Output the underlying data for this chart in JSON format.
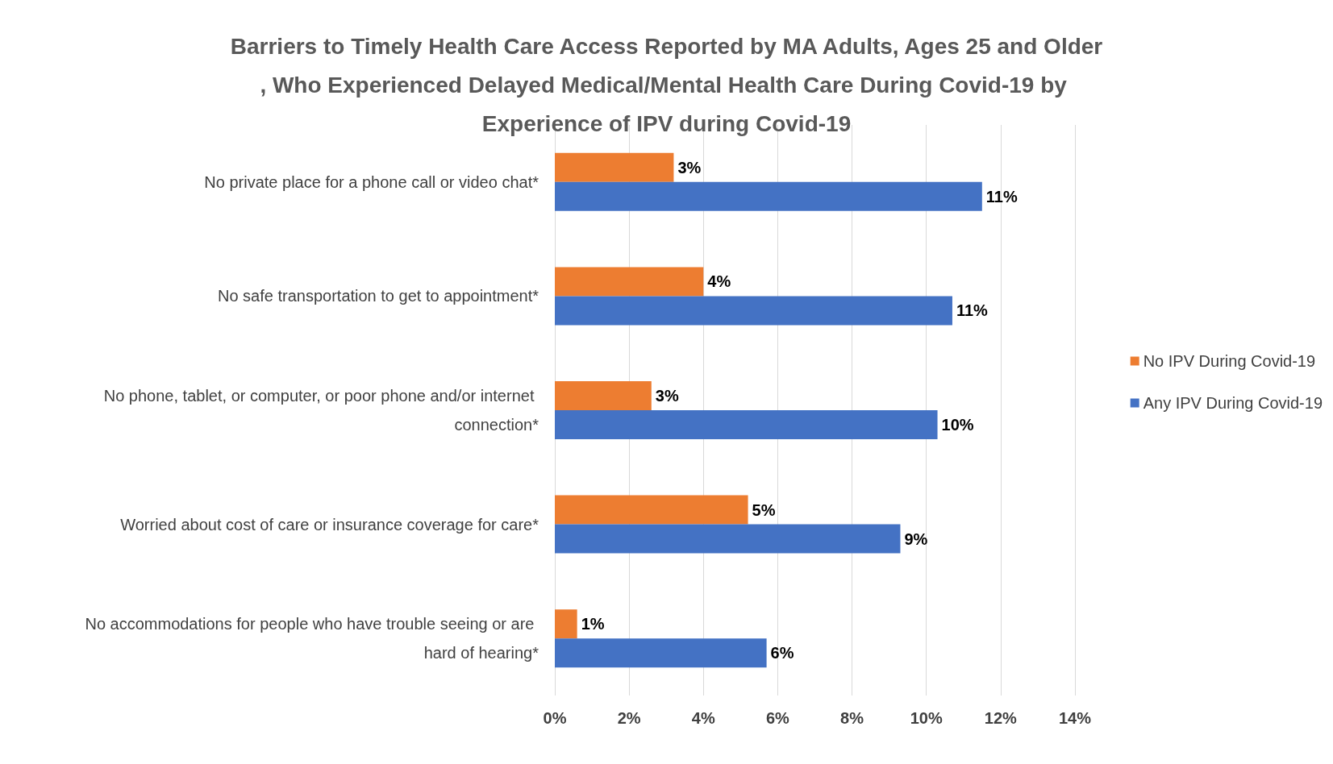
{
  "chart_data": {
    "type": "bar",
    "orientation": "horizontal",
    "title": "Barriers to Timely Health Care Access Reported by MA Adults, Ages 25 and Older, Who Experienced Delayed Medical/Mental Health Care During Covid-19 by Experience of IPV during Covid-19",
    "categories": [
      "No private place for a phone call or video chat*",
      "No safe transportation to get to appointment*",
      "No phone, tablet, or computer, or poor phone and/or internet connection*",
      "Worried about cost of care or insurance coverage for care*",
      "No accommodations for people who have trouble seeing or are hard of hearing*"
    ],
    "series": [
      {
        "name": "No IPV During Covid-19",
        "color": "#ed7d31",
        "values": [
          3.2,
          4.0,
          2.6,
          5.2,
          0.6
        ],
        "value_labels": [
          "3%",
          "4%",
          "3%",
          "5%",
          "1%"
        ]
      },
      {
        "name": "Any IPV During Covid-19",
        "color": "#4472c4",
        "values": [
          11.5,
          10.7,
          10.3,
          9.3,
          5.7
        ],
        "value_labels": [
          "11%",
          "11%",
          "10%",
          "9%",
          "6%"
        ]
      }
    ],
    "xlim": [
      0,
      14
    ],
    "xticks": [
      {
        "value": 0,
        "label": "0%"
      },
      {
        "value": 2,
        "label": "2%"
      },
      {
        "value": 4,
        "label": "4%"
      },
      {
        "value": 6,
        "label": "6%"
      },
      {
        "value": 8,
        "label": "8%"
      },
      {
        "value": 10,
        "label": "10%"
      },
      {
        "value": 12,
        "label": "12%"
      },
      {
        "value": 14,
        "label": "14%"
      }
    ],
    "grid": "x",
    "legend": "right"
  }
}
